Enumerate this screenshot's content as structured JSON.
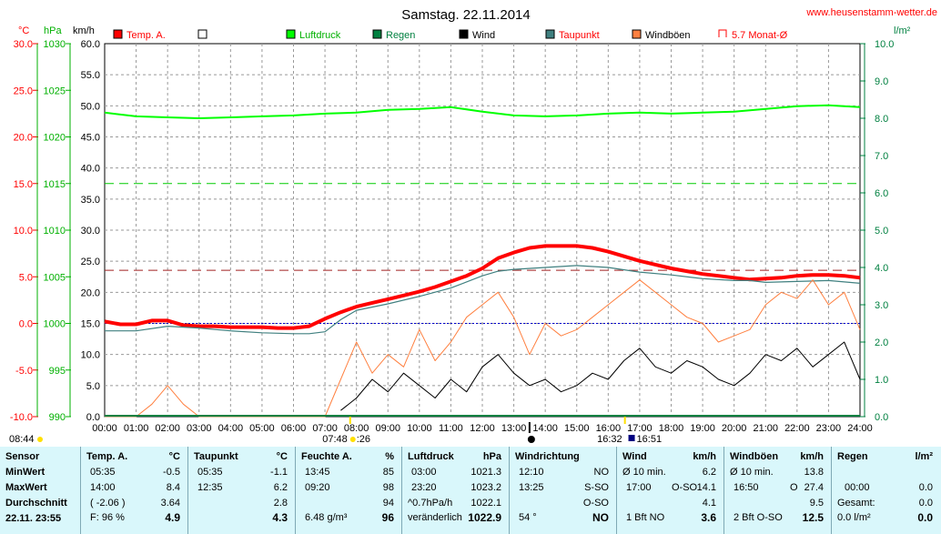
{
  "header": {
    "title": "Samstag. 22.11.2014",
    "url": "www.heusenstamm-wetter.de",
    "unit_temp": "°C",
    "unit_pressure": "hPa",
    "unit_wind": "km/h",
    "unit_rain": "l/m²"
  },
  "legend": [
    {
      "label": "Temp. A.",
      "color": "#ff0000",
      "style": "filled"
    },
    {
      "label": "",
      "color": "#ffffff",
      "style": "empty"
    },
    {
      "label": "Luftdruck",
      "color": "#00ff00",
      "style": "filled"
    },
    {
      "label": "Regen",
      "color": "#008040",
      "style": "filled"
    },
    {
      "label": "Wind",
      "color": "#000000",
      "style": "filled"
    },
    {
      "label": "Taupunkt",
      "color": "#408080",
      "style": "filled"
    },
    {
      "label": "Windböen",
      "color": "#ff8040",
      "style": "filled"
    },
    {
      "label": "5.7 Monat-Ø",
      "color": "#ff0000",
      "style": "bracket"
    }
  ],
  "sun": {
    "left_time": "08:44",
    "rise": "07:48",
    "rise_suffix": ":26",
    "set": "16:32",
    "set_suffix": "16:51"
  },
  "chart_data": {
    "type": "line",
    "x_ticks": [
      "00:00",
      "01:00",
      "02:00",
      "03:00",
      "04:00",
      "05:00",
      "06:00",
      "07:00",
      "08:00",
      "09:00",
      "10:00",
      "11:00",
      "12:00",
      "13:00",
      "14:00",
      "15:00",
      "16:00",
      "17:00",
      "18:00",
      "19:00",
      "20:00",
      "21:00",
      "22:00",
      "23:00",
      "24:00"
    ],
    "temp_ticks": [
      "30.0",
      "25.0",
      "20.0",
      "15.0",
      "10.0",
      "5.0",
      "0.0",
      "-5.0",
      "-10.0"
    ],
    "pressure_ticks": [
      "1030",
      "1025",
      "1020",
      "1015",
      "1010",
      "1005",
      "1000",
      "995",
      "990"
    ],
    "wind_ticks": [
      "60.0",
      "55.0",
      "50.0",
      "45.0",
      "40.0",
      "35.0",
      "30.0",
      "25.0",
      "20.0",
      "15.0",
      "10.0",
      "5.0",
      "0.0"
    ],
    "rain_ticks": [
      "10.0",
      "9.0",
      "8.0",
      "7.0",
      "6.0",
      "5.0",
      "4.0",
      "3.0",
      "2.0",
      "1.0",
      "0.0"
    ],
    "temp_range": [
      -10,
      30
    ],
    "pressure_range": [
      990,
      1030
    ],
    "wind_range": [
      0,
      60
    ],
    "rain_range": [
      0,
      10
    ],
    "month_avg_temp": 5.7,
    "series": [
      {
        "name": "Temp. A.",
        "axis": "temp",
        "color": "#ff0000",
        "x": [
          0,
          0.5,
          1,
          1.5,
          2,
          2.5,
          3,
          3.5,
          4,
          4.5,
          5,
          5.5,
          6,
          6.5,
          7,
          7.5,
          8,
          8.5,
          9,
          9.5,
          10,
          10.5,
          11,
          11.5,
          12,
          12.5,
          13,
          13.5,
          14,
          14.5,
          15,
          15.5,
          16,
          16.5,
          17,
          17.5,
          18,
          18.5,
          19,
          19.5,
          20,
          20.5,
          21,
          21.5,
          22,
          22.5,
          23,
          23.5,
          24
        ],
        "y": [
          0.2,
          -0.1,
          -0.1,
          0.3,
          0.3,
          -0.2,
          -0.3,
          -0.3,
          -0.4,
          -0.4,
          -0.4,
          -0.5,
          -0.5,
          -0.3,
          0.5,
          1.2,
          1.8,
          2.2,
          2.6,
          3.0,
          3.4,
          3.9,
          4.5,
          5.1,
          5.9,
          7.0,
          7.6,
          8.1,
          8.3,
          8.3,
          8.3,
          8.1,
          7.7,
          7.2,
          6.7,
          6.3,
          5.9,
          5.6,
          5.3,
          5.1,
          4.9,
          4.7,
          4.8,
          4.9,
          5.1,
          5.2,
          5.2,
          5.1,
          4.9
        ]
      },
      {
        "name": "Taupunkt",
        "axis": "temp",
        "color": "#408080",
        "x": [
          0,
          1,
          2,
          3,
          4,
          5,
          6,
          6.5,
          7,
          7.5,
          8,
          9,
          10,
          11,
          12,
          12.5,
          13,
          14,
          15,
          16,
          17,
          18,
          19,
          20,
          20.5,
          21,
          22,
          23,
          24
        ],
        "y": [
          -0.8,
          -0.8,
          -0.3,
          -0.5,
          -0.8,
          -1.0,
          -1.1,
          -1.1,
          -0.9,
          0.4,
          1.4,
          2.1,
          2.9,
          3.8,
          5.1,
          5.6,
          5.8,
          6.0,
          6.2,
          6.0,
          5.5,
          5.2,
          4.8,
          4.6,
          4.6,
          4.4,
          4.5,
          4.6,
          4.3
        ]
      },
      {
        "name": "Luftdruck",
        "axis": "pressure",
        "color": "#00ff00",
        "x": [
          0,
          1,
          2,
          3,
          4,
          5,
          6,
          7,
          8,
          9,
          10,
          11,
          12,
          13,
          14,
          15,
          16,
          17,
          18,
          19,
          20,
          21,
          22,
          23,
          24
        ],
        "y": [
          1022.6,
          1022.2,
          1022.1,
          1022.0,
          1022.1,
          1022.2,
          1022.3,
          1022.5,
          1022.6,
          1022.9,
          1023.0,
          1023.2,
          1022.7,
          1022.3,
          1022.2,
          1022.3,
          1022.5,
          1022.6,
          1022.5,
          1022.6,
          1022.7,
          1023.0,
          1023.3,
          1023.4,
          1023.2
        ]
      },
      {
        "name": "Wind",
        "axis": "wind",
        "color": "#000000",
        "x": [
          7.5,
          8,
          8.5,
          9,
          9.5,
          10,
          10.5,
          11,
          11.5,
          12,
          12.5,
          13,
          13.5,
          14,
          14.5,
          15,
          15.5,
          16,
          16.5,
          17,
          17.5,
          18,
          18.5,
          19,
          19.5,
          20,
          20.5,
          21,
          21.5,
          22,
          22.5,
          23,
          23.5,
          24
        ],
        "y": [
          1,
          3,
          6,
          4,
          7,
          5,
          3,
          6,
          4,
          8,
          10,
          7,
          5,
          6,
          4,
          5,
          7,
          6,
          9,
          11,
          8,
          7,
          9,
          8,
          6,
          5,
          7,
          10,
          9,
          11,
          8,
          10,
          12,
          6
        ]
      },
      {
        "name": "Windböen",
        "axis": "wind",
        "color": "#ff8040",
        "x": [
          0,
          1,
          1.5,
          2,
          2.5,
          3,
          4,
          5,
          6,
          7,
          7.5,
          8,
          8.5,
          9,
          9.5,
          10,
          10.5,
          11,
          11.5,
          12,
          12.5,
          13,
          13.5,
          14,
          14.5,
          15,
          15.5,
          16,
          16.5,
          17,
          17.5,
          18,
          18.5,
          19,
          19.5,
          20,
          20.5,
          21,
          21.5,
          22,
          22.5,
          23,
          23.5,
          24
        ],
        "y": [
          0,
          0,
          2,
          5,
          2,
          0,
          0,
          0,
          0,
          0,
          6,
          12,
          7,
          10,
          8,
          14,
          9,
          12,
          16,
          18,
          20,
          16,
          10,
          15,
          13,
          14,
          16,
          18,
          20,
          22,
          20,
          18,
          16,
          15,
          12,
          13,
          14,
          18,
          20,
          19,
          22,
          18,
          20,
          14
        ]
      }
    ]
  },
  "table": {
    "row_labels": [
      "Sensor",
      "MinWert",
      "MaxWert",
      "Durchschnitt"
    ],
    "footer_date": "22.11. 23:55",
    "temp": {
      "title": "Temp. A.",
      "unit": "°C",
      "min_time": "05:35",
      "min": "-0.5",
      "max_time": "14:00",
      "max": "8.4",
      "avg_paren": "( -2.06 )",
      "avg": "3.64",
      "cur_label": "F: 96 %",
      "cur": "4.9"
    },
    "dew": {
      "title": "Taupunkt",
      "unit": "°C",
      "min_time": "05:35",
      "min": "-1.1",
      "max_time": "12:35",
      "max": "6.2",
      "avg": "2.8",
      "cur": "4.3"
    },
    "hum": {
      "title": "Feuchte A.",
      "unit": "%",
      "min_time": "13:45",
      "min": "85",
      "max_time": "09:20",
      "max": "98",
      "avg": "94",
      "cur_label": "6.48 g/m³",
      "cur": "96"
    },
    "press": {
      "title": "Luftdruck",
      "unit": "hPa",
      "min_time": "03:00",
      "min": "1021.3",
      "max_time": "23:20",
      "max": "1023.2",
      "avg_label": "^0.7hPa/h",
      "avg": "1022.1",
      "cur_label": "veränderlich",
      "cur": "1022.9"
    },
    "dir": {
      "title": "Windrichtung",
      "min_time": "12:10",
      "min": "NO",
      "max_time": "13:25",
      "max": "S-SO",
      "avg": "O-SO",
      "cur_label": "54 °",
      "cur": "NO"
    },
    "wind": {
      "title": "Wind",
      "unit": "km/h",
      "min_label": "Ø 10 min.",
      "min": "6.2",
      "max_time": "17:00",
      "max_dir": "O-SO",
      "max": "14.1",
      "avg": "4.1",
      "cur_label": "1 Bft NO",
      "cur": "3.6"
    },
    "gust": {
      "title": "Windböen",
      "unit": "km/h",
      "min_label": "Ø 10 min.",
      "min": "13.8",
      "max_time": "16:50",
      "max_dir": "O",
      "max": "27.4",
      "avg": "9.5",
      "cur_label": "2 Bft O-SO",
      "cur": "12.5"
    },
    "rain": {
      "title": "Regen",
      "unit": "l/m²",
      "min_time": "00:00",
      "min": "0.0",
      "avg_label": "Gesamt:",
      "avg": "0.0",
      "cur_label": "0.0 l/m²",
      "cur": "0.0"
    }
  }
}
